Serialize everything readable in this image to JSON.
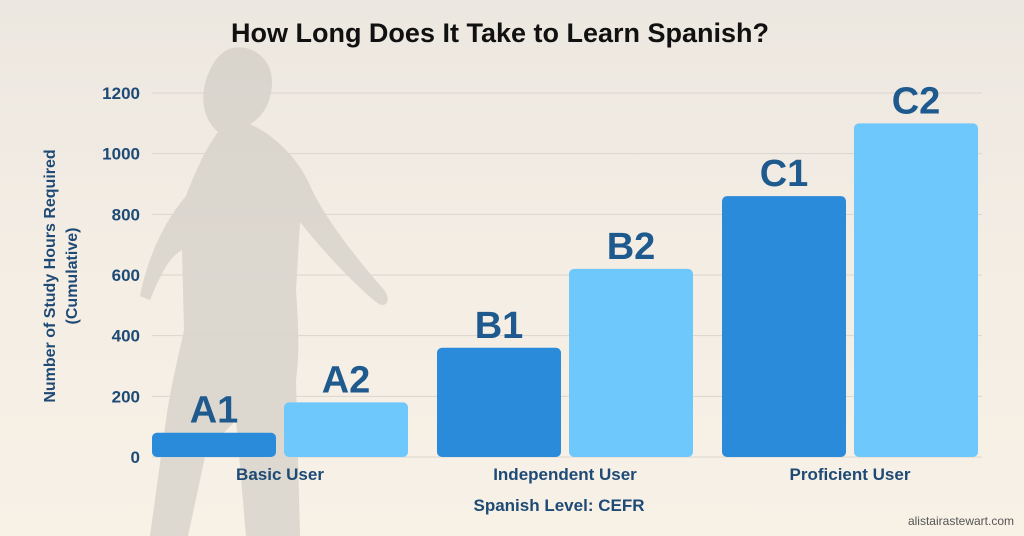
{
  "chart_data": {
    "type": "bar",
    "title": "How Long Does It Take to Learn Spanish?",
    "xlabel": "Spanish Level: CEFR",
    "ylabel_line1": "Number of Study Hours Required",
    "ylabel_line2": "(Cumulative)",
    "ylim": [
      0,
      1200
    ],
    "yticks": [
      0,
      200,
      400,
      600,
      800,
      1000,
      1200
    ],
    "grid": true,
    "groups": [
      {
        "name": "Basic User",
        "bars": [
          {
            "label": "A1",
            "value": 80,
            "color": "#2a8bdb"
          },
          {
            "label": "A2",
            "value": 180,
            "color": "#6fc8fb"
          }
        ]
      },
      {
        "name": "Independent User",
        "bars": [
          {
            "label": "B1",
            "value": 360,
            "color": "#2a8bdb"
          },
          {
            "label": "B2",
            "value": 620,
            "color": "#6fc8fb"
          }
        ]
      },
      {
        "name": "Proficient User",
        "bars": [
          {
            "label": "C1",
            "value": 860,
            "color": "#2a8bdb"
          },
          {
            "label": "C2",
            "value": 1100,
            "color": "#6fc8fb"
          }
        ]
      }
    ]
  },
  "colors": {
    "axis_text": "#1e4a75",
    "bar_label": "#1f5a8f",
    "grid": "#d9d6d0"
  },
  "watermark": "alistairastewart.com"
}
